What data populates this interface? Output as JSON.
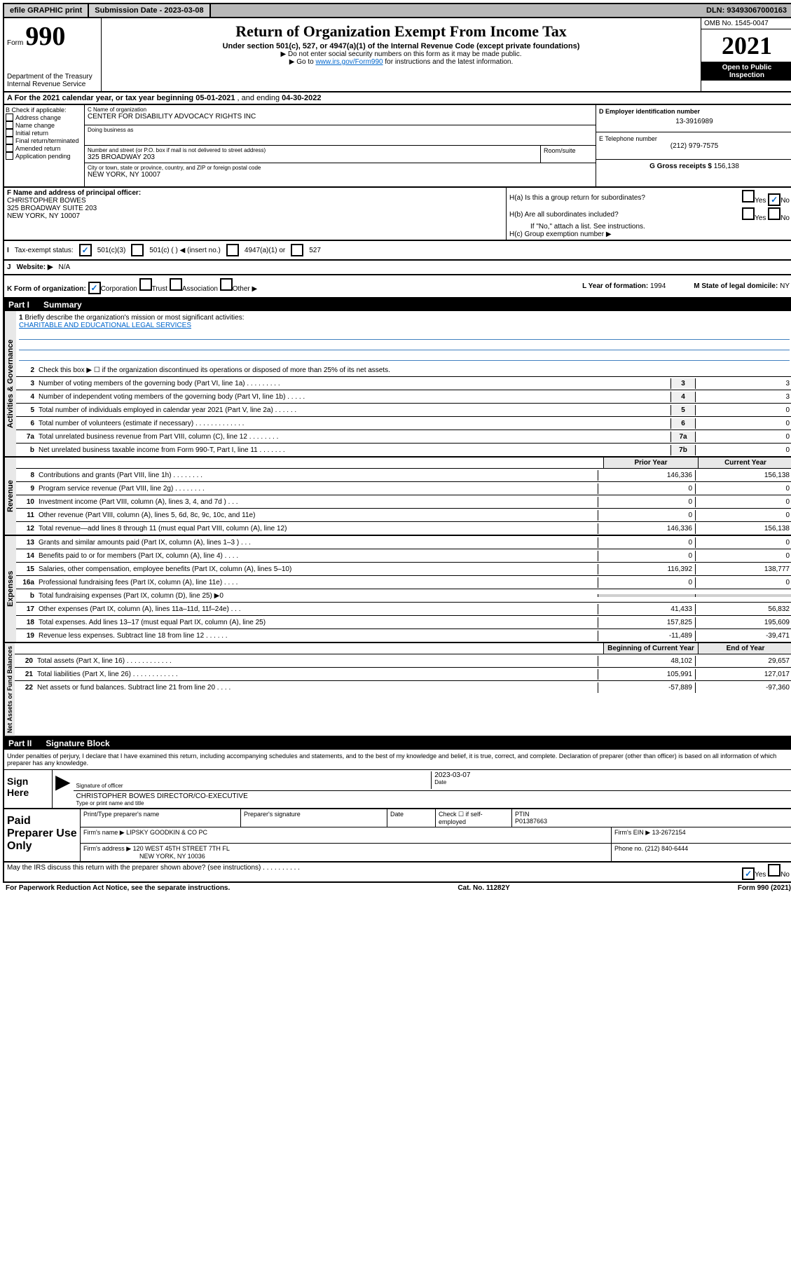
{
  "topbar": {
    "efile": "efile GRAPHIC print",
    "submission_label": "Submission Date - ",
    "submission_date": "2023-03-08",
    "dln_label": "DLN: ",
    "dln": "93493067000163"
  },
  "header": {
    "form_prefix": "Form",
    "form_number": "990",
    "dept": "Department of the Treasury",
    "irs": "Internal Revenue Service",
    "title": "Return of Organization Exempt From Income Tax",
    "subtitle": "Under section 501(c), 527, or 4947(a)(1) of the Internal Revenue Code (except private foundations)",
    "note1": "▶ Do not enter social security numbers on this form as it may be made public.",
    "note2_prefix": "▶ Go to ",
    "note2_link": "www.irs.gov/Form990",
    "note2_suffix": " for instructions and the latest information.",
    "omb": "OMB No. 1545-0047",
    "year": "2021",
    "open_public": "Open to Public Inspection"
  },
  "rowA": {
    "text_prefix": "A For the 2021 calendar year, or tax year beginning ",
    "begin": "05-01-2021",
    "mid": " , and ending ",
    "end": "04-30-2022"
  },
  "colB": {
    "label": "B Check if applicable:",
    "items": [
      "Address change",
      "Name change",
      "Initial return",
      "Final return/terminated",
      "Amended return",
      "Application pending"
    ]
  },
  "colC": {
    "name_label": "C Name of organization",
    "name": "CENTER FOR DISABILITY ADVOCACY RIGHTS INC",
    "dba_label": "Doing business as",
    "dba": "",
    "street_label": "Number and street (or P.O. box if mail is not delivered to street address)",
    "street": "325 BROADWAY 203",
    "room_label": "Room/suite",
    "city_label": "City or town, state or province, country, and ZIP or foreign postal code",
    "city": "NEW YORK, NY  10007"
  },
  "colD": {
    "ein_label": "D Employer identification number",
    "ein": "13-3916989",
    "phone_label": "E Telephone number",
    "phone": "(212) 979-7575",
    "gross_label": "G Gross receipts $ ",
    "gross": "156,138"
  },
  "colF": {
    "label": "F Name and address of principal officer:",
    "name": "CHRISTOPHER BOWES",
    "addr1": "325 BROADWAY SUITE 203",
    "addr2": "NEW YORK, NY  10007"
  },
  "colH": {
    "ha": "H(a)  Is this a group return for subordinates?",
    "hb": "H(b)  Are all subordinates included?",
    "hb_note": "If \"No,\" attach a list. See instructions.",
    "hc": "H(c)  Group exemption number ▶"
  },
  "rowI": {
    "label": "I",
    "tax_label": "Tax-exempt status:",
    "opt1": "501(c)(3)",
    "opt2": "501(c) (  ) ◀ (insert no.)",
    "opt3": "4947(a)(1) or",
    "opt4": "527"
  },
  "rowJ": {
    "label": "J",
    "web_label": "Website: ▶",
    "website": "N/A"
  },
  "rowK": {
    "label": "K Form of organization:",
    "opts": [
      "Corporation",
      "Trust",
      "Association",
      "Other ▶"
    ],
    "year_label": "L Year of formation: ",
    "year": "1994",
    "state_label": "M State of legal domicile: ",
    "state": "NY"
  },
  "part1": {
    "label": "Part I",
    "title": "Summary"
  },
  "mission": {
    "num": "1",
    "label": "Briefly describe the organization's mission or most significant activities:",
    "text": "CHARITABLE AND EDUCATIONAL LEGAL SERVICES"
  },
  "governance": {
    "label": "Activities & Governance",
    "line2": "Check this box ▶ ☐  if the organization discontinued its operations or disposed of more than 25% of its net assets.",
    "lines": [
      {
        "n": "3",
        "d": "Number of voting members of the governing body (Part VI, line 1a)   .    .    .    .    .    .    .    .    .",
        "b": "3",
        "v": "3"
      },
      {
        "n": "4",
        "d": "Number of independent voting members of the governing body (Part VI, line 1b)   .    .    .    .    .",
        "b": "4",
        "v": "3"
      },
      {
        "n": "5",
        "d": "Total number of individuals employed in calendar year 2021 (Part V, line 2a)   .    .    .    .    .    .",
        "b": "5",
        "v": "0"
      },
      {
        "n": "6",
        "d": "Total number of volunteers (estimate if necessary)   .    .    .    .    .    .    .    .    .    .    .    .    .",
        "b": "6",
        "v": "0"
      },
      {
        "n": "7a",
        "d": "Total unrelated business revenue from Part VIII, column (C), line 12   .    .    .    .    .    .    .    .",
        "b": "7a",
        "v": "0"
      },
      {
        "n": "b",
        "d": "Net unrelated business taxable income from Form 990-T, Part I, line 11   .    .    .    .    .    .    .",
        "b": "7b",
        "v": "0"
      }
    ]
  },
  "yearCols": {
    "prior": "Prior Year",
    "current": "Current Year"
  },
  "revenue": {
    "label": "Revenue",
    "lines": [
      {
        "n": "8",
        "d": "Contributions and grants (Part VIII, line 1h)   .    .    .    .    .    .    .    .",
        "p": "146,336",
        "c": "156,138"
      },
      {
        "n": "9",
        "d": "Program service revenue (Part VIII, line 2g)   .    .    .    .    .    .    .    .",
        "p": "0",
        "c": "0"
      },
      {
        "n": "10",
        "d": "Investment income (Part VIII, column (A), lines 3, 4, and 7d )   .    .    .",
        "p": "0",
        "c": "0"
      },
      {
        "n": "11",
        "d": "Other revenue (Part VIII, column (A), lines 5, 6d, 8c, 9c, 10c, and 11e)",
        "p": "0",
        "c": "0"
      },
      {
        "n": "12",
        "d": "Total revenue—add lines 8 through 11 (must equal Part VIII, column (A), line 12)",
        "p": "146,336",
        "c": "156,138"
      }
    ]
  },
  "expenses": {
    "label": "Expenses",
    "lines": [
      {
        "n": "13",
        "d": "Grants and similar amounts paid (Part IX, column (A), lines 1–3 )   .    .    .",
        "p": "0",
        "c": "0"
      },
      {
        "n": "14",
        "d": "Benefits paid to or for members (Part IX, column (A), line 4)   .    .    .    .",
        "p": "0",
        "c": "0"
      },
      {
        "n": "15",
        "d": "Salaries, other compensation, employee benefits (Part IX, column (A), lines 5–10)",
        "p": "116,392",
        "c": "138,777"
      },
      {
        "n": "16a",
        "d": "Professional fundraising fees (Part IX, column (A), line 11e)   .    .    .    .",
        "p": "0",
        "c": "0"
      },
      {
        "n": "b",
        "d": "Total fundraising expenses (Part IX, column (D), line 25) ▶0",
        "p": "",
        "c": "",
        "shaded": true
      },
      {
        "n": "17",
        "d": "Other expenses (Part IX, column (A), lines 11a–11d, 11f–24e)   .    .    .",
        "p": "41,433",
        "c": "56,832"
      },
      {
        "n": "18",
        "d": "Total expenses. Add lines 13–17 (must equal Part IX, column (A), line 25)",
        "p": "157,825",
        "c": "195,609"
      },
      {
        "n": "19",
        "d": "Revenue less expenses. Subtract line 18 from line 12   .    .    .    .    .    .",
        "p": "-11,489",
        "c": "-39,471"
      }
    ]
  },
  "netYearCols": {
    "begin": "Beginning of Current Year",
    "end": "End of Year"
  },
  "netassets": {
    "label": "Net Assets or Fund Balances",
    "lines": [
      {
        "n": "20",
        "d": "Total assets (Part X, line 16)   .    .    .    .    .    .    .    .    .    .    .    .",
        "p": "48,102",
        "c": "29,657"
      },
      {
        "n": "21",
        "d": "Total liabilities (Part X, line 26)   .    .    .    .    .    .    .    .    .    .    .    .",
        "p": "105,991",
        "c": "127,017"
      },
      {
        "n": "22",
        "d": "Net assets or fund balances. Subtract line 21 from line 20   .    .    .    .",
        "p": "-57,889",
        "c": "-97,360"
      }
    ]
  },
  "part2": {
    "label": "Part II",
    "title": "Signature Block"
  },
  "sig": {
    "declaration": "Under penalties of perjury, I declare that I have examined this return, including accompanying schedules and statements, and to the best of my knowledge and belief, it is true, correct, and complete. Declaration of preparer (other than officer) is based on all information of which preparer has any knowledge.",
    "sign_here": "Sign Here",
    "sig_officer": "Signature of officer",
    "date_label": "Date",
    "date": "2023-03-07",
    "name_title": "CHRISTOPHER BOWES  DIRECTOR/CO-EXECUTIVE",
    "name_label": "Type or print name and title"
  },
  "preparer": {
    "label": "Paid Preparer Use Only",
    "print_name_label": "Print/Type preparer's name",
    "sig_label": "Preparer's signature",
    "date_label": "Date",
    "check_label": "Check ☐ if self-employed",
    "ptin_label": "PTIN",
    "ptin": "P01387663",
    "firm_name_label": "Firm's name    ▶ ",
    "firm_name": "LIPSKY GOODKIN & CO PC",
    "firm_ein_label": "Firm's EIN ▶ ",
    "firm_ein": "13-2672154",
    "firm_addr_label": "Firm's address ▶ ",
    "firm_addr1": "120 WEST 45TH STREET 7TH FL",
    "firm_addr2": "NEW YORK, NY  10036",
    "phone_label": "Phone no. ",
    "phone": "(212) 840-6444"
  },
  "footer": {
    "discuss": "May the IRS discuss this return with the preparer shown above? (see instructions)   .    .    .    .    .    .    .    .    .    .",
    "yes": "Yes",
    "no": "No",
    "paperwork": "For Paperwork Reduction Act Notice, see the separate instructions.",
    "cat": "Cat. No. 11282Y",
    "form": "Form 990 (2021)"
  }
}
